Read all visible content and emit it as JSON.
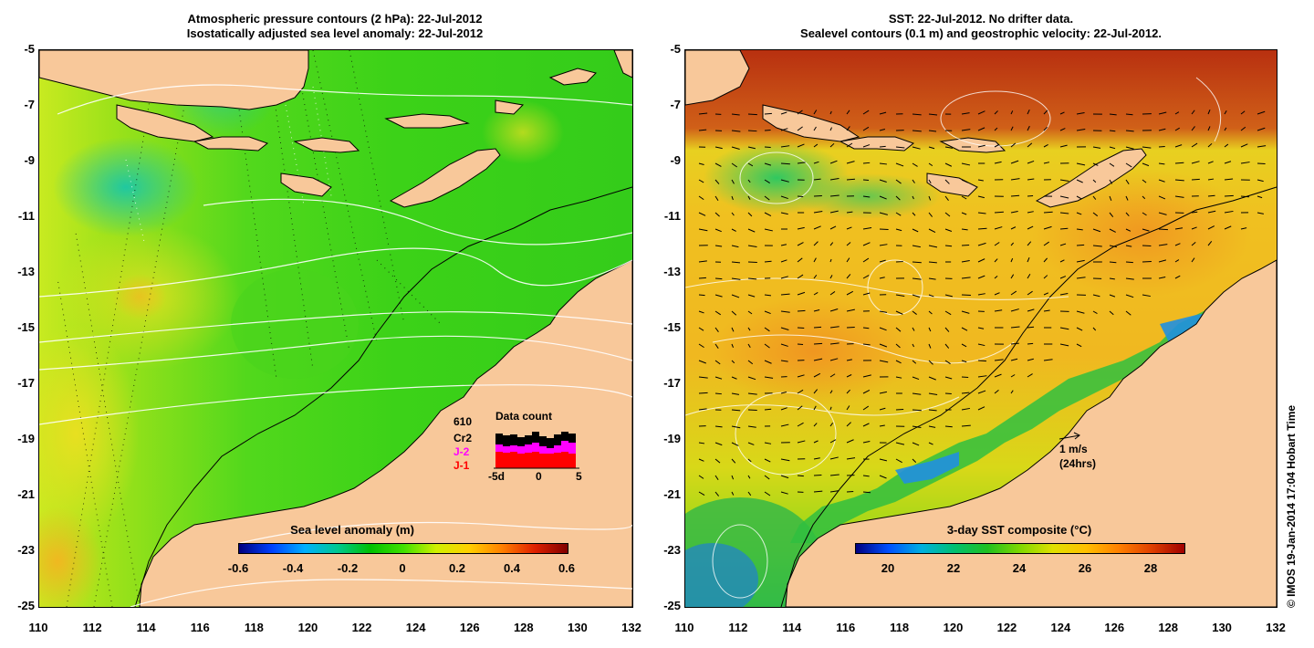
{
  "left_map": {
    "title_line1": "Atmospheric pressure contours (2 hPa): 22-Jul-2012",
    "title_line2": "Isostatically adjusted sea level anomaly: 22-Jul-2012",
    "colorbar_title": "Sea level anomaly (m)",
    "colorbar_labels": [
      "-0.6",
      "-0.4",
      "-0.2",
      "0",
      "0.2",
      "0.4",
      "0.6"
    ],
    "colorbar_range": [
      -0.6,
      0.6
    ],
    "data_count": {
      "title": "Data count",
      "total": "610",
      "missions": [
        {
          "name": "Cr2",
          "color": "#000000"
        },
        {
          "name": "J-2",
          "color": "#ff00ff"
        },
        {
          "name": "J-1",
          "color": "#ff0000"
        }
      ],
      "axis_labels": [
        "-5d",
        "0",
        "5"
      ]
    }
  },
  "right_map": {
    "title_line1": "SST: 22-Jul-2012. No drifter data.",
    "title_line2": "Sealevel contours (0.1 m) and geostrophic velocity: 22-Jul-2012.",
    "colorbar_title": "3-day SST composite (°C)",
    "colorbar_labels": [
      "20",
      "22",
      "24",
      "26",
      "28"
    ],
    "colorbar_range": [
      19,
      29
    ],
    "velocity_key_speed": "1 m/s",
    "velocity_key_time": "(24hrs)"
  },
  "axes": {
    "y_labels": [
      "-5",
      "-7",
      "-9",
      "-11",
      "-13",
      "-15",
      "-17",
      "-19",
      "-21",
      "-23",
      "-25"
    ],
    "x_labels": [
      "110",
      "112",
      "114",
      "116",
      "118",
      "120",
      "122",
      "124",
      "126",
      "128",
      "130",
      "132"
    ],
    "lat_range": [
      -25,
      -5
    ],
    "lon_range": [
      110,
      132
    ]
  },
  "colors": {
    "land": "#f8c89a",
    "sla_colormap": [
      "#00007f",
      "#0040ff",
      "#00c0ff",
      "#00d070",
      "#00c000",
      "#30e000",
      "#c0f000",
      "#ffd000",
      "#ff8000",
      "#e02000",
      "#800000"
    ],
    "sst_colormap": [
      "#000080",
      "#0060ff",
      "#00c0c0",
      "#00c040",
      "#40d000",
      "#c0e000",
      "#ffc000",
      "#ff8000",
      "#e04000",
      "#a00000"
    ]
  },
  "copyright": "© IMOS 19-Jan-2014 17:04 Hobart Time"
}
